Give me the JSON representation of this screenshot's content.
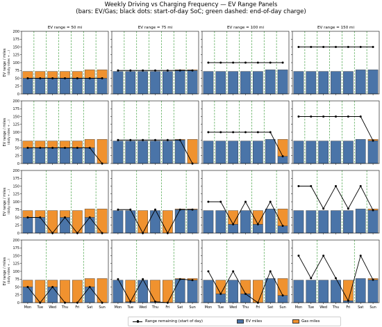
{
  "figure": {
    "title_line1": "Weekly Driving vs Charging Frequency — EV Range Panels",
    "title_line2": "(bars: EV/Gas; black dots: start-of-day SoC; green dashed: end-of-day charge)"
  },
  "colors": {
    "ev": "#4a74a8",
    "gas": "#f0922f",
    "range": "#000000",
    "charge": "#3a9d3a"
  },
  "legend": {
    "range_label": "Range remaining (start of day)",
    "ev_label": "EV miles",
    "gas_label": "Gas miles"
  },
  "chart_data": {
    "type": "bar",
    "layout": "4x4 grid of panels; columns = EV range, rows = charging frequency",
    "stacked": true,
    "categories": [
      "Mon",
      "Tue",
      "Wed",
      "Thu",
      "Fri",
      "Sat",
      "Sun"
    ],
    "ylabel": "EV range / miles",
    "ylabel_sub": "(daily miles + ...)",
    "ylim": [
      0,
      200
    ],
    "yticks": [
      0,
      25,
      50,
      75,
      100,
      125,
      150,
      175,
      200
    ],
    "grid": false,
    "legend_position": "bottom-center",
    "column_titles": [
      "EV range = 50 mi",
      "EV range = 75 mi",
      "EV range = 100 mi",
      "EV range = 150 mi"
    ],
    "daily_miles": [
      72,
      72,
      72,
      72,
      72,
      77,
      77
    ],
    "panels": [
      {
        "row": 0,
        "col": 0,
        "ev": [
          50,
          50,
          50,
          50,
          50,
          50,
          50
        ],
        "range": [
          50,
          50,
          50,
          50,
          50,
          50,
          50
        ],
        "charge": [
          true,
          true,
          true,
          true,
          true,
          true,
          false
        ]
      },
      {
        "row": 0,
        "col": 1,
        "ev": [
          72,
          72,
          72,
          72,
          72,
          75,
          75
        ],
        "range": [
          75,
          75,
          75,
          75,
          75,
          75,
          75
        ],
        "charge": [
          true,
          true,
          true,
          true,
          true,
          true,
          false
        ]
      },
      {
        "row": 0,
        "col": 2,
        "ev": [
          72,
          72,
          72,
          72,
          72,
          77,
          77
        ],
        "range": [
          100,
          100,
          100,
          100,
          100,
          100,
          100
        ],
        "charge": [
          true,
          true,
          true,
          true,
          true,
          true,
          false
        ]
      },
      {
        "row": 0,
        "col": 3,
        "ev": [
          72,
          72,
          72,
          72,
          72,
          77,
          77
        ],
        "range": [
          150,
          150,
          150,
          150,
          150,
          150,
          150
        ],
        "charge": [
          true,
          true,
          true,
          true,
          true,
          true,
          false
        ]
      },
      {
        "row": 1,
        "col": 0,
        "ev": [
          50,
          50,
          50,
          50,
          50,
          50,
          0
        ],
        "range": [
          50,
          50,
          50,
          50,
          50,
          50,
          0
        ],
        "charge": [
          true,
          true,
          true,
          true,
          true,
          false,
          false
        ]
      },
      {
        "row": 1,
        "col": 1,
        "ev": [
          72,
          72,
          72,
          72,
          72,
          75,
          0
        ],
        "range": [
          75,
          75,
          75,
          75,
          75,
          75,
          0
        ],
        "charge": [
          true,
          true,
          true,
          true,
          true,
          false,
          false
        ]
      },
      {
        "row": 1,
        "col": 2,
        "ev": [
          72,
          72,
          72,
          72,
          72,
          77,
          23
        ],
        "range": [
          100,
          100,
          100,
          100,
          100,
          100,
          23
        ],
        "charge": [
          true,
          true,
          true,
          true,
          true,
          false,
          false
        ]
      },
      {
        "row": 1,
        "col": 3,
        "ev": [
          72,
          72,
          72,
          72,
          72,
          77,
          73
        ],
        "range": [
          150,
          150,
          150,
          150,
          150,
          150,
          73
        ],
        "charge": [
          true,
          true,
          true,
          true,
          true,
          false,
          false
        ]
      },
      {
        "row": 2,
        "col": 0,
        "ev": [
          50,
          50,
          0,
          50,
          0,
          50,
          0
        ],
        "range": [
          50,
          50,
          0,
          50,
          0,
          50,
          0
        ],
        "charge": [
          false,
          true,
          false,
          true,
          false,
          true,
          false
        ]
      },
      {
        "row": 2,
        "col": 1,
        "ev": [
          72,
          75,
          0,
          75,
          0,
          75,
          75
        ],
        "range": [
          75,
          75,
          0,
          75,
          0,
          75,
          75
        ],
        "charge": [
          false,
          true,
          false,
          true,
          false,
          true,
          false
        ]
      },
      {
        "row": 2,
        "col": 2,
        "ev": [
          72,
          72,
          28,
          72,
          28,
          77,
          23
        ],
        "range": [
          100,
          100,
          28,
          100,
          28,
          100,
          23
        ],
        "charge": [
          false,
          true,
          false,
          true,
          false,
          true,
          false
        ]
      },
      {
        "row": 2,
        "col": 3,
        "ev": [
          72,
          72,
          72,
          72,
          72,
          77,
          73
        ],
        "range": [
          150,
          150,
          78,
          150,
          78,
          150,
          73
        ],
        "charge": [
          false,
          true,
          false,
          true,
          false,
          true,
          false
        ]
      },
      {
        "row": 3,
        "col": 0,
        "ev": [
          50,
          0,
          50,
          0,
          0,
          50,
          0
        ],
        "range": [
          50,
          0,
          50,
          0,
          0,
          50,
          0
        ],
        "charge": [
          false,
          true,
          false,
          false,
          true,
          false,
          false
        ]
      },
      {
        "row": 3,
        "col": 1,
        "ev": [
          72,
          3,
          72,
          3,
          0,
          75,
          72
        ],
        "range": [
          75,
          3,
          75,
          3,
          0,
          75,
          72
        ],
        "charge": [
          false,
          true,
          false,
          false,
          true,
          false,
          false
        ]
      },
      {
        "row": 3,
        "col": 2,
        "ev": [
          72,
          28,
          72,
          28,
          0,
          77,
          23
        ],
        "range": [
          100,
          28,
          100,
          28,
          0,
          100,
          23
        ],
        "charge": [
          false,
          true,
          false,
          false,
          true,
          false,
          false
        ]
      },
      {
        "row": 3,
        "col": 3,
        "ev": [
          72,
          72,
          72,
          72,
          6,
          77,
          73
        ],
        "range": [
          150,
          78,
          150,
          78,
          6,
          150,
          73
        ],
        "charge": [
          false,
          true,
          false,
          false,
          true,
          false,
          false
        ]
      }
    ]
  }
}
